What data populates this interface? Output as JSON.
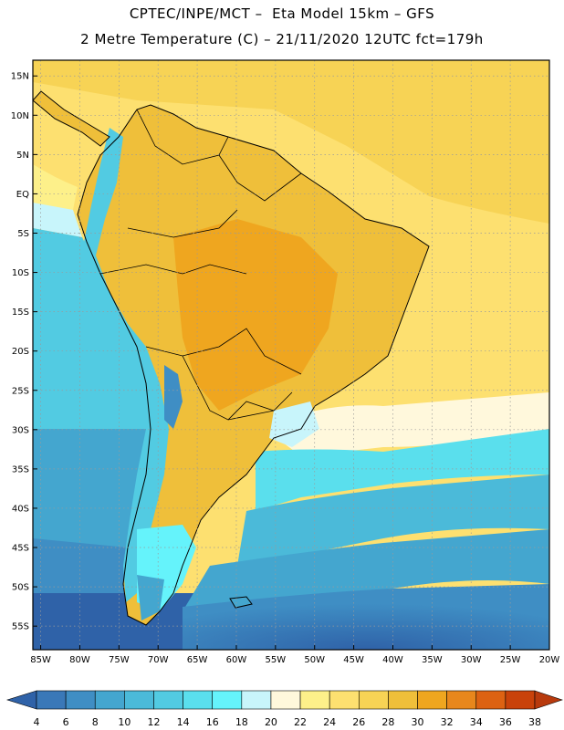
{
  "header": {
    "line1": "CPTEC/INPE/MCT –  Eta Model 15km – GFS",
    "line2": "2 Metre Temperature (C) – 21/11/2020 12UTC fct=179h"
  },
  "map": {
    "lon_range": [
      -86,
      -20
    ],
    "lat_range": [
      -58,
      17
    ],
    "lat_ticks": [
      "15N",
      "10N",
      "5N",
      "EQ",
      "5S",
      "10S",
      "15S",
      "20S",
      "25S",
      "30S",
      "35S",
      "40S",
      "45S",
      "50S",
      "55S"
    ],
    "lat_values": [
      15,
      10,
      5,
      0,
      -5,
      -10,
      -15,
      -20,
      -25,
      -30,
      -35,
      -40,
      -45,
      -50,
      -55
    ],
    "lon_ticks": [
      "85W",
      "80W",
      "75W",
      "70W",
      "65W",
      "60W",
      "55W",
      "50W",
      "45W",
      "40W",
      "35W",
      "30W",
      "25W",
      "20W"
    ],
    "lon_values": [
      -85,
      -80,
      -75,
      -70,
      -65,
      -60,
      -55,
      -50,
      -45,
      -40,
      -35,
      -30,
      -25,
      -20
    ],
    "grid": "dotted"
  },
  "colorbar": {
    "labels": [
      "4",
      "6",
      "8",
      "10",
      "12",
      "14",
      "16",
      "18",
      "20",
      "22",
      "24",
      "26",
      "28",
      "30",
      "32",
      "34",
      "36",
      "38"
    ],
    "colors": [
      "#2f62a8",
      "#3a78b8",
      "#3f8ec4",
      "#44a6cf",
      "#4bbad9",
      "#52cbe2",
      "#5adfed",
      "#65f3fb",
      "#c8f5fb",
      "#fff8dc",
      "#fdf08a",
      "#fde070",
      "#f7d355",
      "#efbf3a",
      "#efa61f",
      "#e8871c",
      "#dd6212",
      "#c9420a",
      "#b83a0d"
    ]
  }
}
